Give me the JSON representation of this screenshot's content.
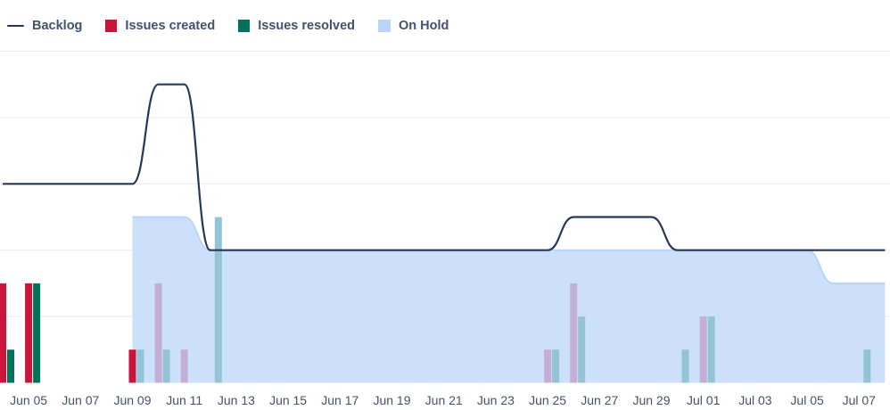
{
  "legend": {
    "backlog": "Backlog",
    "created": "Issues created",
    "resolved": "Issues resolved",
    "onhold": "On Hold"
  },
  "colors": {
    "backlog": "#253858",
    "created": "#c9143c",
    "resolved": "#00735a",
    "onhold_fill": "#cce0fb",
    "onhold_line": "#b8d4f7",
    "created_onhold": "#c4aed6",
    "resolved_onhold": "#94c3d8",
    "grid": "#ebecf0",
    "tick_text": "#42526e"
  },
  "chart_data": {
    "type": "line",
    "title": "",
    "xlabel": "",
    "ylabel": "",
    "x_range": [
      "2023-06-04",
      "2023-07-08"
    ],
    "ylim": [
      0,
      5
    ],
    "y_grid_lines": [
      1,
      2,
      3,
      4,
      5
    ],
    "x_ticks": [
      "Jun 05",
      "Jun 07",
      "Jun 09",
      "Jun 11",
      "Jun 13",
      "Jun 15",
      "Jun 17",
      "Jun 19",
      "Jun 21",
      "Jun 23",
      "Jun 25",
      "Jun 27",
      "Jun 29",
      "Jul 01",
      "Jul 03",
      "Jul 05",
      "Jul 07"
    ],
    "x_tick_dates": [
      "2023-06-05",
      "2023-06-07",
      "2023-06-09",
      "2023-06-11",
      "2023-06-13",
      "2023-06-15",
      "2023-06-17",
      "2023-06-19",
      "2023-06-21",
      "2023-06-23",
      "2023-06-25",
      "2023-06-27",
      "2023-06-29",
      "2023-07-01",
      "2023-07-03",
      "2023-07-05",
      "2023-07-07"
    ],
    "series": [
      {
        "name": "Backlog",
        "kind": "line",
        "points": [
          [
            "2023-06-04",
            3
          ],
          [
            "2023-06-09",
            3
          ],
          [
            "2023-06-10",
            4.5
          ],
          [
            "2023-06-11",
            4.5
          ],
          [
            "2023-06-12",
            2
          ],
          [
            "2023-06-25",
            2
          ],
          [
            "2023-06-26",
            2.5
          ],
          [
            "2023-06-29",
            2.5
          ],
          [
            "2023-06-30",
            2
          ],
          [
            "2023-07-08",
            2
          ]
        ]
      },
      {
        "name": "On Hold",
        "kind": "area",
        "points": [
          [
            "2023-06-09",
            2.5
          ],
          [
            "2023-06-11",
            2.5
          ],
          [
            "2023-06-12",
            2
          ],
          [
            "2023-07-05",
            2
          ],
          [
            "2023-07-06",
            1.5
          ],
          [
            "2023-07-08",
            1.5
          ]
        ]
      },
      {
        "name": "Issues created",
        "kind": "bar",
        "points": [
          [
            "2023-06-04",
            1.5
          ],
          [
            "2023-06-05",
            1.5
          ],
          [
            "2023-06-09",
            0.5
          ],
          [
            "2023-06-10",
            1.5
          ],
          [
            "2023-06-11",
            0.5
          ],
          [
            "2023-06-25",
            0.5
          ],
          [
            "2023-06-26",
            1.5
          ],
          [
            "2023-07-01",
            1
          ]
        ]
      },
      {
        "name": "Issues resolved",
        "kind": "bar",
        "points": [
          [
            "2023-06-04",
            0.5
          ],
          [
            "2023-06-05",
            1.5
          ],
          [
            "2023-06-09",
            0.5
          ],
          [
            "2023-06-10",
            0.5
          ],
          [
            "2023-06-12",
            2.5
          ],
          [
            "2023-06-25",
            0.5
          ],
          [
            "2023-06-26",
            1
          ],
          [
            "2023-06-30",
            0.5
          ],
          [
            "2023-07-01",
            1
          ],
          [
            "2023-07-07",
            0.5
          ]
        ]
      }
    ]
  }
}
